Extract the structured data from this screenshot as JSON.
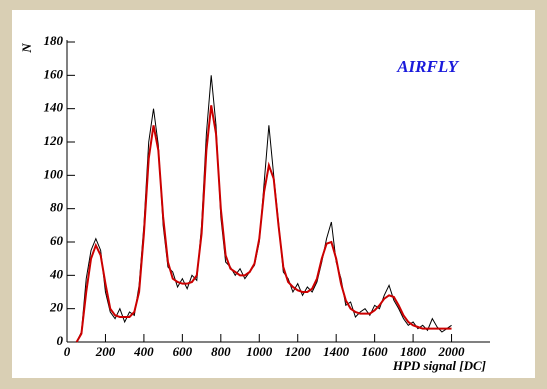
{
  "chart_data": {
    "type": "line",
    "annotation": "AIRFLY",
    "xlabel": "HPD signal [DC]",
    "ylabel": "N",
    "x": [
      50,
      75,
      100,
      125,
      150,
      175,
      200,
      225,
      250,
      275,
      300,
      325,
      350,
      375,
      400,
      425,
      450,
      475,
      500,
      525,
      550,
      575,
      600,
      625,
      650,
      675,
      700,
      725,
      750,
      775,
      800,
      825,
      850,
      875,
      900,
      925,
      950,
      975,
      1000,
      1025,
      1050,
      1075,
      1100,
      1125,
      1150,
      1175,
      1200,
      1225,
      1250,
      1275,
      1300,
      1325,
      1350,
      1375,
      1400,
      1425,
      1450,
      1475,
      1500,
      1525,
      1550,
      1575,
      1600,
      1625,
      1650,
      1675,
      1700,
      1725,
      1750,
      1775,
      1800,
      1825,
      1850,
      1875,
      1900,
      1925,
      1950,
      1975,
      2000
    ],
    "series": [
      {
        "color": "#000000",
        "values": [
          0,
          6,
          38,
          55,
          62,
          55,
          30,
          18,
          14,
          20,
          12,
          18,
          16,
          34,
          70,
          120,
          140,
          118,
          70,
          45,
          42,
          33,
          38,
          32,
          40,
          37,
          70,
          125,
          160,
          130,
          75,
          48,
          45,
          40,
          44,
          38,
          42,
          46,
          60,
          95,
          130,
          100,
          72,
          42,
          38,
          30,
          35,
          28,
          33,
          30,
          36,
          48,
          62,
          72,
          48,
          38,
          22,
          24,
          15,
          18,
          20,
          16,
          22,
          20,
          28,
          34,
          25,
          20,
          14,
          10,
          12,
          8,
          10,
          7,
          14,
          9,
          6,
          8,
          10
        ]
      },
      {
        "color": "#cc0000",
        "values": [
          0,
          5,
          30,
          50,
          58,
          52,
          35,
          20,
          16,
          15,
          15,
          15,
          18,
          30,
          65,
          110,
          130,
          115,
          75,
          48,
          38,
          36,
          35,
          35,
          36,
          40,
          65,
          115,
          142,
          125,
          80,
          52,
          44,
          42,
          40,
          40,
          42,
          47,
          62,
          90,
          106,
          98,
          70,
          45,
          36,
          33,
          31,
          30,
          30,
          32,
          38,
          50,
          59,
          60,
          50,
          35,
          25,
          20,
          18,
          17,
          17,
          17,
          19,
          22,
          26,
          28,
          27,
          22,
          16,
          12,
          10,
          9,
          8,
          8,
          8,
          8,
          8,
          8,
          8
        ]
      }
    ],
    "xlim": [
      0,
      2200
    ],
    "ylim": [
      0,
      180
    ],
    "xticks": [
      0,
      200,
      400,
      600,
      800,
      1000,
      1200,
      1400,
      1600,
      1800,
      2000
    ],
    "yticks": [
      0,
      20,
      40,
      60,
      80,
      100,
      120,
      140,
      160,
      180
    ]
  }
}
